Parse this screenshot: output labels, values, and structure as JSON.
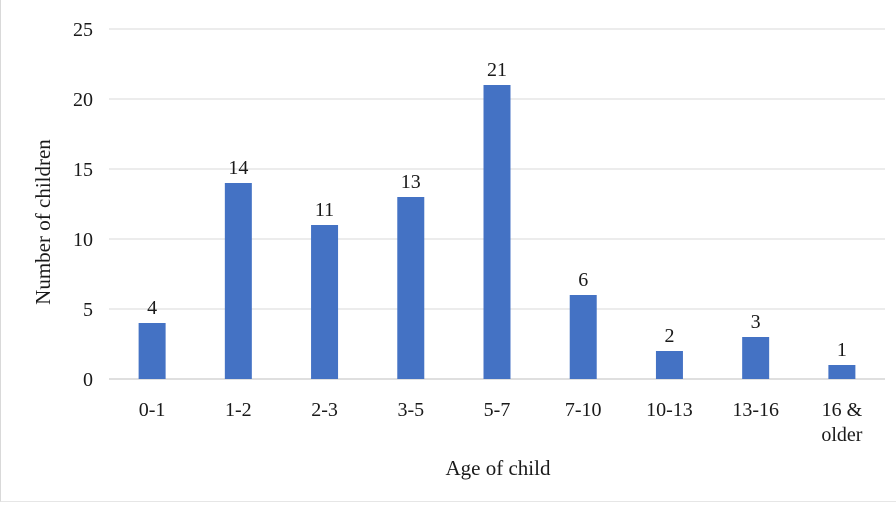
{
  "chart_data": {
    "type": "bar",
    "title": "",
    "xlabel": "Age of child",
    "ylabel": "Number of children",
    "categories": [
      "0-1",
      "1-2",
      "2-3",
      "3-5",
      "5-7",
      "7-10",
      "10-13",
      "13-16",
      "16 & older"
    ],
    "category_lines": [
      [
        "0-1"
      ],
      [
        "1-2"
      ],
      [
        "2-3"
      ],
      [
        "3-5"
      ],
      [
        "5-7"
      ],
      [
        "7-10"
      ],
      [
        "10-13"
      ],
      [
        "13-16"
      ],
      [
        "16 &",
        "older"
      ]
    ],
    "values": [
      4,
      14,
      11,
      13,
      21,
      6,
      2,
      3,
      1
    ],
    "ylim": [
      0,
      25
    ],
    "yticks": [
      0,
      5,
      10,
      15,
      20,
      25
    ],
    "grid": true,
    "legend": "none",
    "data_labels": true,
    "bar_color": "#4472C4"
  }
}
